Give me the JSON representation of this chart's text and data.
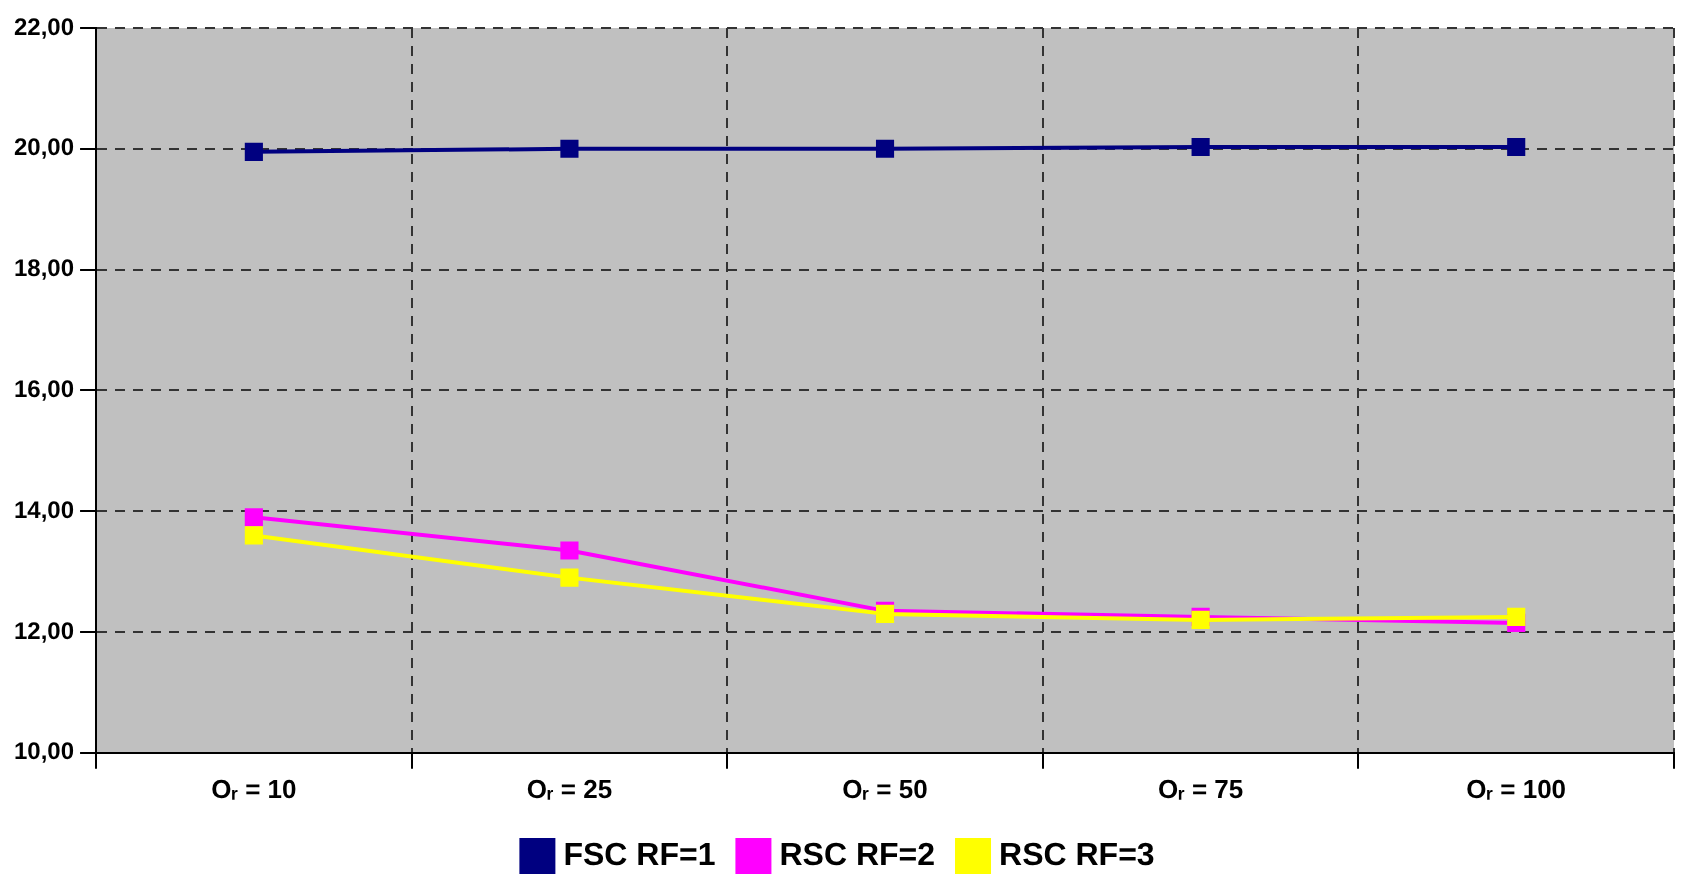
{
  "chart_data": {
    "type": "line",
    "categories": [
      "Oᵣ = 10",
      "Oᵣ = 25",
      "Oᵣ = 50",
      "Oᵣ = 75",
      "Oᵣ = 100"
    ],
    "series": [
      {
        "name": "FSC RF=1",
        "color": "#000080",
        "values": [
          19.95,
          20.0,
          20.0,
          20.03,
          20.03
        ]
      },
      {
        "name": "RSC RF=2",
        "color": "#ff00ff",
        "values": [
          13.9,
          13.35,
          12.35,
          12.25,
          12.15
        ]
      },
      {
        "name": "RSC RF=3",
        "color": "#ffff00",
        "values": [
          13.6,
          12.9,
          12.3,
          12.2,
          12.25
        ]
      }
    ],
    "ylim": [
      10,
      22
    ],
    "yticks": [
      {
        "value": 10,
        "label": "10,00"
      },
      {
        "value": 12,
        "label": "12,00"
      },
      {
        "value": 14,
        "label": "14,00"
      },
      {
        "value": 16,
        "label": "16,00"
      },
      {
        "value": 18,
        "label": "18,00"
      },
      {
        "value": 20,
        "label": "20,00"
      },
      {
        "value": 22,
        "label": "22,00"
      }
    ],
    "grid": true,
    "legend": "bottom",
    "marker": "square",
    "line_style": "solid"
  }
}
